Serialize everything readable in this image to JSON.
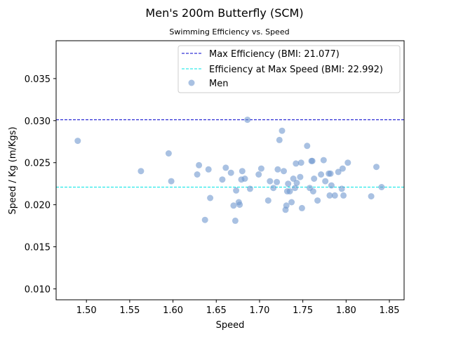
{
  "chart_data": {
    "type": "scatter",
    "title": "Men's 200m Butterfly (SCM)",
    "subtitle": "Swimming Efficiency vs. Speed",
    "xlabel": "Speed",
    "ylabel": "Speed / Kg (m/Kgs)",
    "xlim": [
      1.465,
      1.867
    ],
    "ylim": [
      0.0087,
      0.0395
    ],
    "xticks": [
      "1.50",
      "1.55",
      "1.60",
      "1.65",
      "1.70",
      "1.75",
      "1.80",
      "1.85"
    ],
    "xtick_values": [
      1.5,
      1.55,
      1.6,
      1.65,
      1.7,
      1.75,
      1.8,
      1.85
    ],
    "yticks": [
      "0.010",
      "0.015",
      "0.020",
      "0.025",
      "0.030",
      "0.035"
    ],
    "ytick_values": [
      0.01,
      0.015,
      0.02,
      0.025,
      0.03,
      0.035
    ],
    "grid": false,
    "legend_position": "top-right",
    "hlines": [
      {
        "label": "Max Efficiency (BMI: 21.077)",
        "y": 0.0301,
        "color": "#0000cc",
        "style": "dashed"
      },
      {
        "label": "Efficiency at Max Speed (BMI: 22.992)",
        "y": 0.0221,
        "color": "#00e5e5",
        "style": "dashed"
      }
    ],
    "series": [
      {
        "name": "Men",
        "color": "#6f97cf",
        "points": [
          [
            1.49,
            0.0276
          ],
          [
            1.563,
            0.024
          ],
          [
            1.595,
            0.0261
          ],
          [
            1.598,
            0.0228
          ],
          [
            1.628,
            0.0236
          ],
          [
            1.63,
            0.0247
          ],
          [
            1.637,
            0.0182
          ],
          [
            1.641,
            0.0242
          ],
          [
            1.643,
            0.0208
          ],
          [
            1.657,
            0.023
          ],
          [
            1.661,
            0.0244
          ],
          [
            1.667,
            0.0238
          ],
          [
            1.67,
            0.0199
          ],
          [
            1.672,
            0.0181
          ],
          [
            1.673,
            0.0217
          ],
          [
            1.676,
            0.0203
          ],
          [
            1.677,
            0.02
          ],
          [
            1.679,
            0.023
          ],
          [
            1.68,
            0.024
          ],
          [
            1.683,
            0.0231
          ],
          [
            1.686,
            0.0301
          ],
          [
            1.689,
            0.0219
          ],
          [
            1.699,
            0.0236
          ],
          [
            1.702,
            0.0243
          ],
          [
            1.71,
            0.0205
          ],
          [
            1.712,
            0.0228
          ],
          [
            1.716,
            0.022
          ],
          [
            1.72,
            0.0227
          ],
          [
            1.721,
            0.0242
          ],
          [
            1.723,
            0.0277
          ],
          [
            1.726,
            0.0288
          ],
          [
            1.728,
            0.024
          ],
          [
            1.73,
            0.0194
          ],
          [
            1.731,
            0.0199
          ],
          [
            1.732,
            0.0216
          ],
          [
            1.733,
            0.0225
          ],
          [
            1.735,
            0.0216
          ],
          [
            1.737,
            0.0203
          ],
          [
            1.739,
            0.0231
          ],
          [
            1.741,
            0.022
          ],
          [
            1.742,
            0.0249
          ],
          [
            1.743,
            0.0226
          ],
          [
            1.747,
            0.0233
          ],
          [
            1.748,
            0.025
          ],
          [
            1.749,
            0.0196
          ],
          [
            1.755,
            0.027
          ],
          [
            1.758,
            0.022
          ],
          [
            1.76,
            0.0252
          ],
          [
            1.761,
            0.0252
          ],
          [
            1.762,
            0.0216
          ],
          [
            1.763,
            0.0231
          ],
          [
            1.767,
            0.0205
          ],
          [
            1.771,
            0.0236
          ],
          [
            1.774,
            0.0253
          ],
          [
            1.776,
            0.0228
          ],
          [
            1.78,
            0.0237
          ],
          [
            1.781,
            0.0211
          ],
          [
            1.782,
            0.0237
          ],
          [
            1.783,
            0.0223
          ],
          [
            1.787,
            0.0211
          ],
          [
            1.791,
            0.0239
          ],
          [
            1.795,
            0.0219
          ],
          [
            1.796,
            0.0243
          ],
          [
            1.797,
            0.0211
          ],
          [
            1.802,
            0.025
          ],
          [
            1.829,
            0.021
          ],
          [
            1.835,
            0.0245
          ],
          [
            1.841,
            0.0221
          ]
        ]
      }
    ]
  }
}
